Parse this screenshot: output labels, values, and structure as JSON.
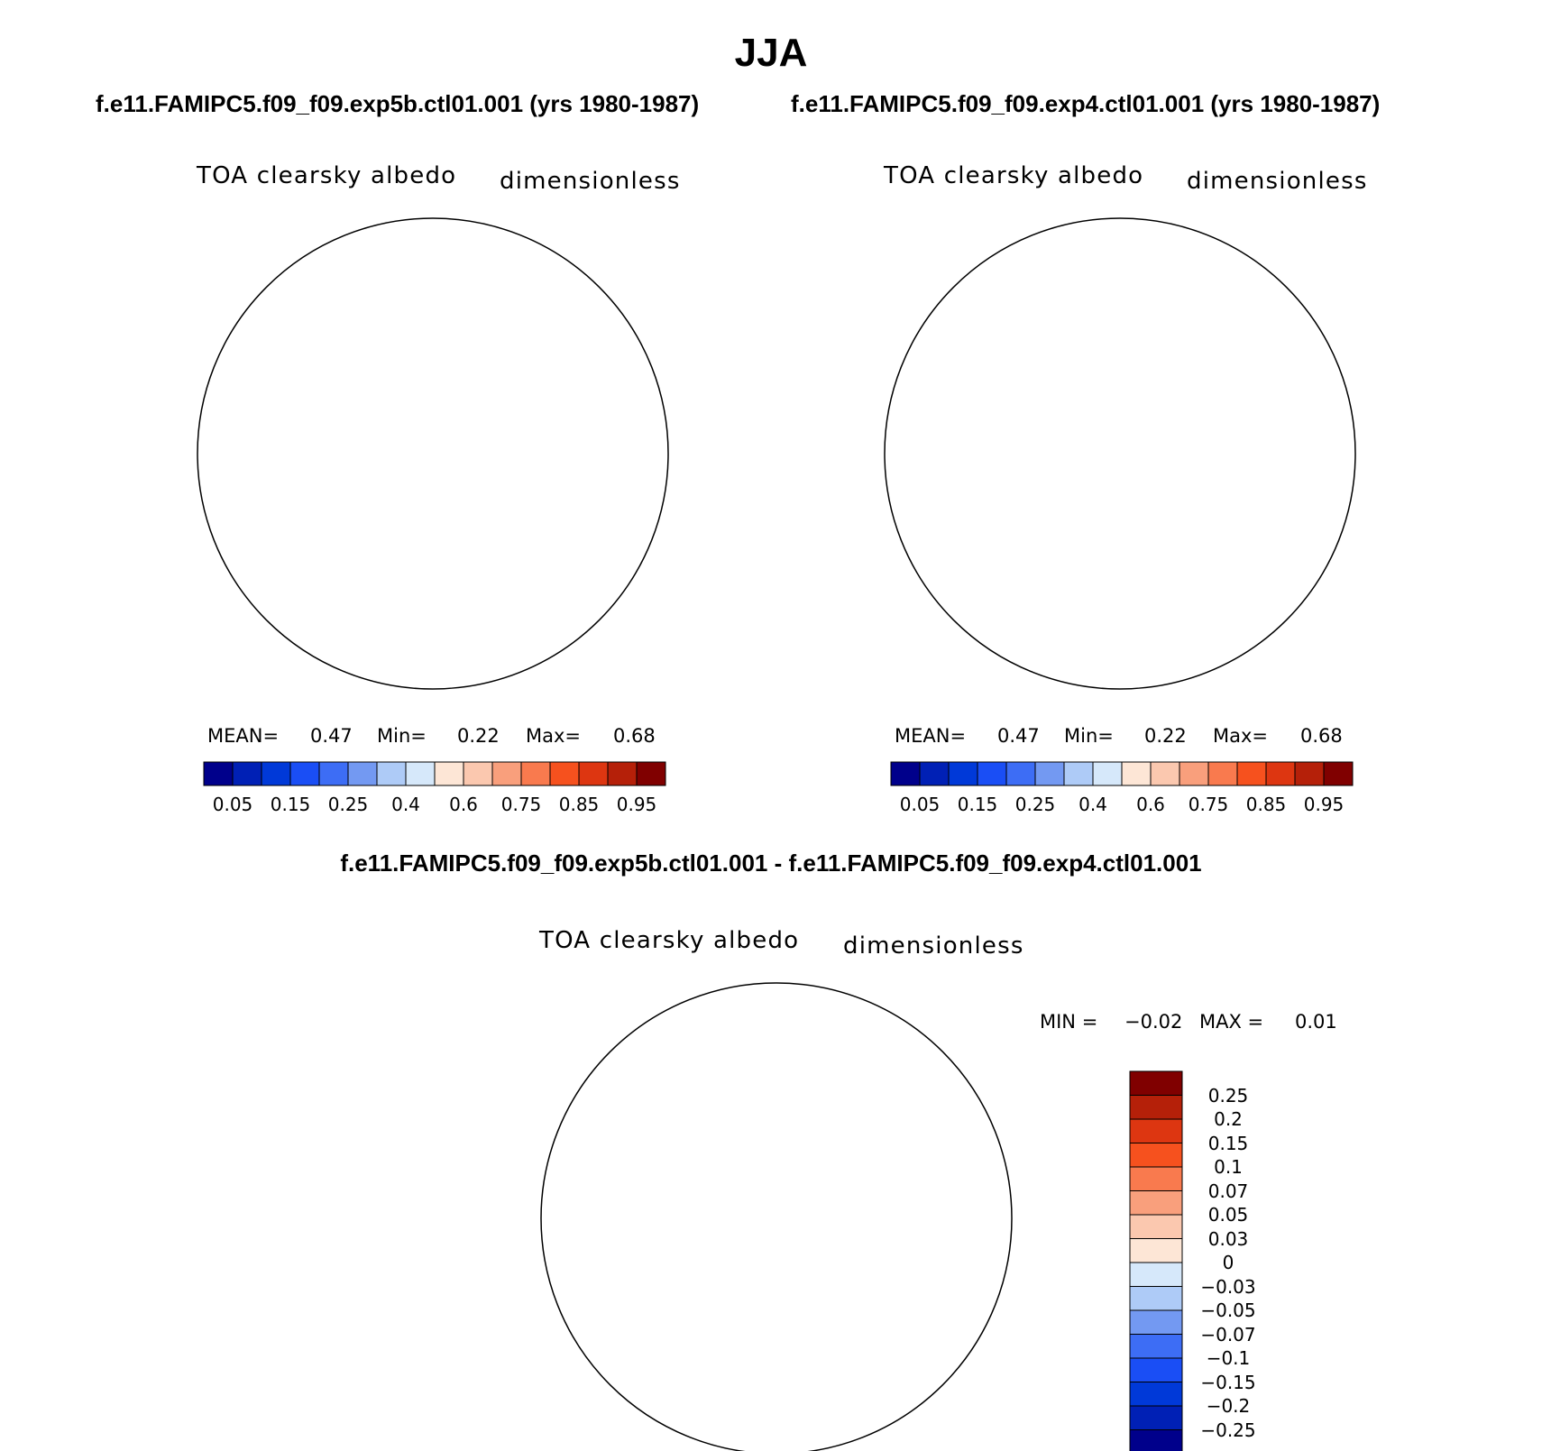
{
  "header": {
    "season": "JJA",
    "case1_title": "f.e11.FAMIPC5.f09_f09.exp5b.ctl01.001 (yrs 1980-1987)",
    "case2_title": "f.e11.FAMIPC5.f09_f09.exp4.ctl01.001 (yrs 1980-1987)",
    "diff_title": "f.e11.FAMIPC5.f09_f09.exp5b.ctl01.001 - f.e11.FAMIPC5.f09_f09.exp4.ctl01.001"
  },
  "panels": [
    {
      "variable": "TOA clearsky albedo",
      "units": "dimensionless",
      "mean_label": "MEAN=",
      "mean": "0.47",
      "min_label": "Min=",
      "min": "0.22",
      "max_label": "Max=",
      "max": "0.68"
    },
    {
      "variable": "TOA clearsky albedo",
      "units": "dimensionless",
      "mean_label": "MEAN=",
      "mean": "0.47",
      "min_label": "Min=",
      "min": "0.22",
      "max_label": "Max=",
      "max": "0.68"
    }
  ],
  "diff_panel": {
    "variable": "TOA clearsky albedo",
    "units": "dimensionless",
    "min_label": "MIN =",
    "min": "−0.02",
    "max_label": "MAX =",
    "max": "0.01"
  },
  "colorbar": {
    "colors": [
      "#00008b",
      "#0020b5",
      "#0039d8",
      "#1a4ef5",
      "#3d6df5",
      "#7399f2",
      "#aecbf7",
      "#d6e8fa",
      "#fde6d6",
      "#fbc8af",
      "#f99f7c",
      "#f97a4e",
      "#f6511e",
      "#dd3611",
      "#b52009",
      "#800000"
    ],
    "labels": [
      "0.05",
      "0.15",
      "0.25",
      "0.4",
      "0.6",
      "0.75",
      "0.85",
      "0.95"
    ]
  },
  "diff_colorbar": {
    "labels": [
      "0.25",
      "0.2",
      "0.15",
      "0.1",
      "0.07",
      "0.05",
      "0.03",
      "0",
      "−0.03",
      "−0.05",
      "−0.07",
      "−0.1",
      "−0.15",
      "−0.2",
      "−0.25"
    ]
  }
}
